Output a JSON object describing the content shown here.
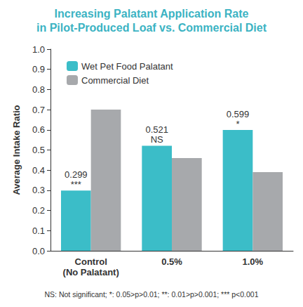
{
  "chart_data": {
    "type": "bar",
    "title": "Increasing Palatant Application Rate\nin Pilot-Produced Loaf vs. Commercial Diet",
    "y_label": "Average Intake Ratio",
    "footnote": "NS: Not significant; *: 0.05>p>0.01; **: 0.01>p>0.001; *** p<0.001",
    "categories": [
      "Control\n(No Palatant)",
      "0.5%",
      "1.0%"
    ],
    "series": [
      {
        "name": "Wet Pet Food Palatant",
        "color": "#3bbdc8",
        "values": [
          0.299,
          0.521,
          0.599
        ],
        "data_labels": true,
        "annotations": [
          "***",
          "NS",
          "*"
        ]
      },
      {
        "name": "Commercial Diet",
        "color": "#a7a9ac",
        "values": [
          0.7,
          0.46,
          0.39
        ],
        "data_labels": false
      }
    ],
    "ylim": [
      0,
      1
    ],
    "yticks": [
      {
        "value": 0,
        "label": "0.0"
      },
      0.1,
      0.2,
      0.3,
      0.4,
      0.5,
      0.6,
      0.7,
      0.8,
      0.9,
      {
        "value": 1,
        "label": "1.0"
      }
    ],
    "grid": false,
    "legend": "upper left"
  }
}
